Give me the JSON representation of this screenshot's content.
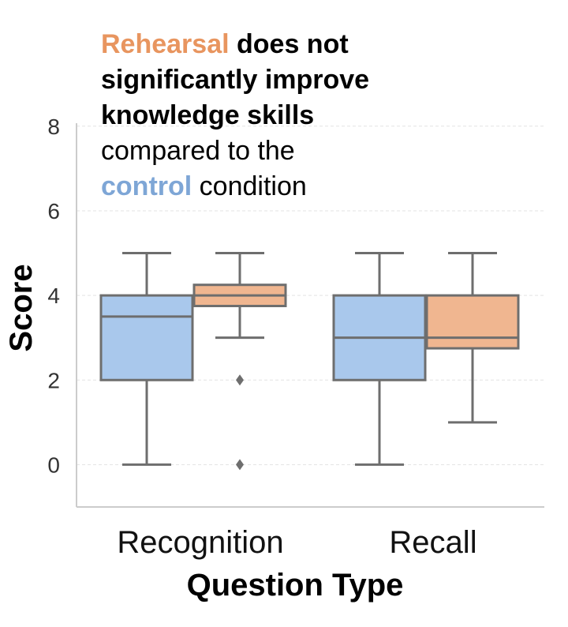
{
  "chart_data": {
    "type": "box",
    "title": "",
    "xlabel": "Question Type",
    "ylabel": "Score",
    "categories": [
      "Recognition",
      "Recall"
    ],
    "ylim": [
      -1,
      8.5
    ],
    "yticks": [
      0,
      2,
      4,
      6,
      8
    ],
    "grid": true,
    "series": [
      {
        "name": "control",
        "color": "#a9c8ec",
        "boxes": [
          {
            "whisker_low": 0,
            "q1": 2,
            "median": 3.5,
            "q3": 4,
            "whisker_high": 5,
            "outliers": []
          },
          {
            "whisker_low": 0,
            "q1": 2,
            "median": 3,
            "q3": 4,
            "whisker_high": 5,
            "outliers": []
          }
        ]
      },
      {
        "name": "Rehearsal",
        "color": "#f0b690",
        "boxes": [
          {
            "whisker_low": 3,
            "q1": 3.75,
            "median": 4,
            "q3": 4.25,
            "whisker_high": 5,
            "outliers": [
              2,
              0
            ]
          },
          {
            "whisker_low": 1,
            "q1": 2.75,
            "median": 3,
            "q3": 4,
            "whisker_high": 5,
            "outliers": []
          }
        ]
      }
    ],
    "annotation": {
      "lines": [
        [
          {
            "text": "Rehearsal",
            "bold": true,
            "color": "#e8955f"
          },
          {
            "text": " does not",
            "bold": true,
            "color": "#000000"
          }
        ],
        [
          {
            "text": "significantly improve",
            "bold": true,
            "color": "#000000"
          }
        ],
        [
          {
            "text": "knowledge skills",
            "bold": true,
            "color": "#000000"
          }
        ],
        [
          {
            "text": "compared to the",
            "bold": false,
            "color": "#000000"
          }
        ],
        [
          {
            "text": "control",
            "bold": true,
            "color": "#7ea6d6"
          },
          {
            "text": " condition",
            "bold": false,
            "color": "#000000"
          }
        ]
      ]
    },
    "colors": {
      "axis": "#cccccc",
      "grid": "#e3e3e3",
      "box_edge": "#6e6e6e"
    }
  }
}
